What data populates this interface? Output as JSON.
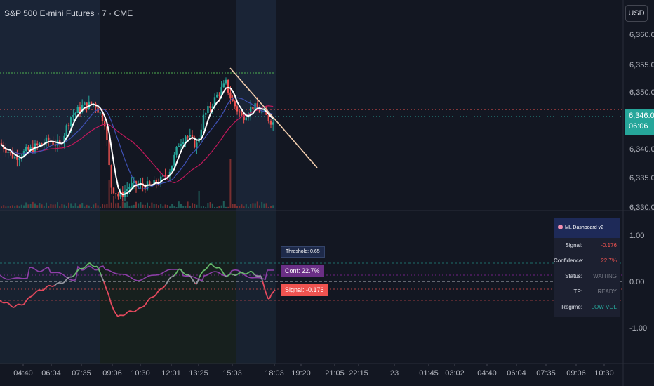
{
  "header": {
    "title": "S&P 500 E-mini Futures · 7 · CME",
    "currency": "USD"
  },
  "price_axis": [
    "6,360.00",
    "6,355.00",
    "6,350.00",
    "6,340.00",
    "6,335.00",
    "6,330.00"
  ],
  "last_price": {
    "price": "6,346.00",
    "countdown": "06:06"
  },
  "osc_axis": [
    "1.00",
    "0.00",
    "-1.00"
  ],
  "time_axis": [
    "04:40",
    "06:04",
    "07:35",
    "09:06",
    "10:30",
    "12:01",
    "13:25",
    "15:03",
    "18:03",
    "19:20",
    "21:05",
    "22:15",
    "23",
    "01:45",
    "03:02",
    "04:40",
    "06:04",
    "07:35",
    "09:06",
    "10:30"
  ],
  "tags": {
    "threshold": "Threshold: 0.65",
    "confidence": "Conf: 22.7%",
    "signal": "Signal: -0.176"
  },
  "dashboard": {
    "title": "ML Dashboard v2",
    "rows": [
      {
        "label": "Signal:",
        "value": "-0.176",
        "color": "#ef5350"
      },
      {
        "label": "Confidence:",
        "value": "22.7%",
        "color": "#ef5350"
      },
      {
        "label": "Status:",
        "value": "WAITING",
        "color": "#787b86"
      },
      {
        "label": "TP:",
        "value": "READY",
        "color": "#787b86"
      },
      {
        "label": "Regime:",
        "value": "LOW VOL",
        "color": "#26a69a"
      }
    ]
  },
  "chart_data": {
    "type": "candlestick",
    "price_ticks": [
      6360,
      6355,
      6350,
      6340,
      6335,
      6330
    ],
    "last_price": 6346.0,
    "oscillator_ticks": [
      1.0,
      0.0,
      -1.0
    ],
    "signal": -0.176,
    "confidence_pct": 22.7,
    "threshold": 0.65
  },
  "colors": {
    "up": "#26a69a",
    "down": "#ef5350",
    "bg": "#131722",
    "session": "#1a2436"
  }
}
